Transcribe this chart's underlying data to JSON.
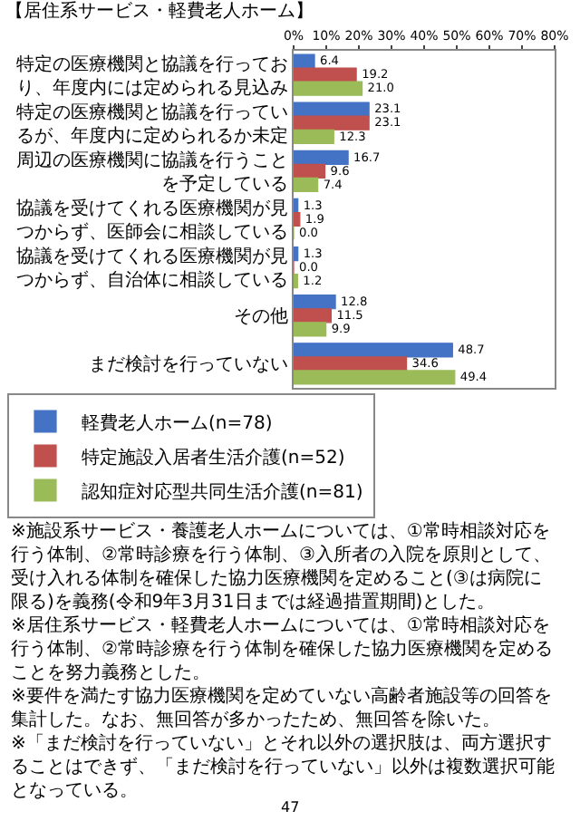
{
  "chart_data": {
    "type": "bar",
    "orientation": "horizontal",
    "title": "【居住系サービス・軽費老人ホーム】",
    "categories": [
      "特定の医療機関と協議を行っており、年度内には定められる見込み",
      "特定の医療機関と協議を行っているが、年度内に定められるか未定",
      "周辺の医療機関に協議を行うことを予定している",
      "協議を受けてくれる医療機関が見つからず、医師会に相談している",
      "協議を受けてくれる医療機関が見つからず、自治体に相談している",
      "その他",
      "まだ検討を行っていない"
    ],
    "series": [
      {
        "name": "軽費老人ホーム(n=78)",
        "color": "#4472c4",
        "values": [
          6.4,
          23.1,
          16.7,
          1.3,
          1.3,
          12.8,
          48.7
        ],
        "value_labels": [
          "6.4",
          "23.1",
          "16.7",
          "1.3",
          "1.3",
          "12.8",
          "48.7"
        ]
      },
      {
        "name": "特定施設入居者生活介護(n=52)",
        "color": "#c0504d",
        "values": [
          19.2,
          23.1,
          9.6,
          1.9,
          0.0,
          11.5,
          34.6
        ],
        "value_labels": [
          "19.2",
          "23.1",
          "9.6",
          "1.9",
          "0.0",
          "11.5",
          "34.6"
        ]
      },
      {
        "name": "認知症対応型共同生活介護(n=81)",
        "color": "#9bbb59",
        "values": [
          21.0,
          12.3,
          7.4,
          0.0,
          1.2,
          9.9,
          49.4
        ],
        "value_labels": [
          "21.0",
          "12.3",
          "7.4",
          "0.0",
          "1.2",
          "9.9",
          "49.4"
        ]
      }
    ],
    "xlim": [
      0,
      80
    ],
    "xticks": [
      {
        "value": 0,
        "label": "0%"
      },
      {
        "value": 10,
        "label": "10%"
      },
      {
        "value": 20,
        "label": "20%"
      },
      {
        "value": 30,
        "label": "30%"
      },
      {
        "value": 40,
        "label": "40%"
      },
      {
        "value": 50,
        "label": "50%"
      },
      {
        "value": 60,
        "label": "60%"
      },
      {
        "value": 70,
        "label": "70%"
      },
      {
        "value": 80,
        "label": "80%"
      }
    ],
    "legend": "bottom",
    "annotations": [
      "※施設系サービス・養護老人ホームについては、①常時相談対応を行う体制、②常時診療を行う体制、③入所者の入院を原則として、受け入れる体制を確保した協力医療機関を定めること(③は病院に限る)を義務(令和9年3月31日までは経過措置期間)とした。",
      "※居住系サービス・軽費老人ホームについては、①常時相談対応を行う体制、②常時診療を行う体制を確保した協力医療機関を定めることを努力義務とした。",
      "※要件を満たす協力医療機関を定めていない高齢者施設等の回答を集計した。なお、無回答が多かったため、無回答を除いた。",
      "※「まだ検討を行っていない」とそれ以外の選択肢は、両方選択することはできず、「まだ検討を行っていない」以外は複数選択可能となっている。",
      "47"
    ]
  }
}
